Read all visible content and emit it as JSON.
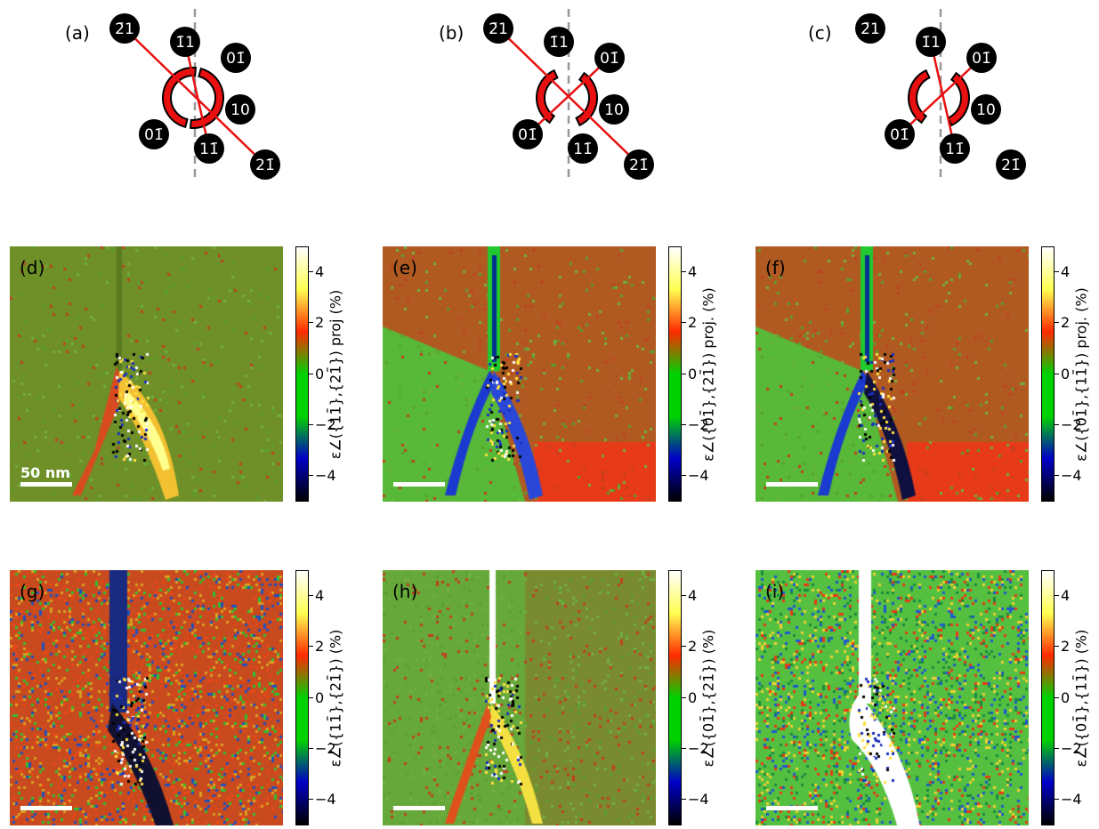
{
  "figure": {
    "diagrams": [
      {
        "label": "(a)",
        "lines": [
          [
            "m21",
            "p21"
          ],
          [
            "m11",
            "p11"
          ]
        ],
        "arcs": [
          "p11"
        ]
      },
      {
        "label": "(b)",
        "lines": [
          [
            "m21",
            "p21"
          ],
          [
            "p01",
            "m01"
          ]
        ],
        "arcs": [
          "p01"
        ]
      },
      {
        "label": "(c)",
        "lines": [
          [
            "m11",
            "p11"
          ],
          [
            "p01",
            "m01"
          ]
        ],
        "arcs": [
          "p01"
        ]
      }
    ],
    "spots": [
      {
        "id": "m21",
        "label": "2̄1"
      },
      {
        "id": "m11",
        "label": "1̄1"
      },
      {
        "id": "p01",
        "label": "01̄"
      },
      {
        "id": "p10",
        "label": "10"
      },
      {
        "id": "m01",
        "label": "01̄"
      },
      {
        "id": "p11",
        "label": "11̄"
      },
      {
        "id": "p21",
        "label": "21̄"
      }
    ],
    "maps": [
      {
        "label": "(d)",
        "scalebar_text": "50 nm",
        "cbar_label": "ε∠({11̄},{21̄}) proj (%)",
        "style": "d"
      },
      {
        "label": "(e)",
        "scalebar_text": "",
        "cbar_label": "ε∠({01̄},{21̄}) proj. (%)",
        "style": "e"
      },
      {
        "label": "(f)",
        "scalebar_text": "",
        "cbar_label": "ε∠({01̄},{11̄}) proj. (%)",
        "style": "f"
      },
      {
        "label": "(g)",
        "scalebar_text": "",
        "cbar_label": "ε∠({11̄},{21̄}) (%)",
        "style": "g"
      },
      {
        "label": "(h)",
        "scalebar_text": "",
        "cbar_label": "ε∠({01̄},{21̄}) (%)",
        "style": "h"
      },
      {
        "label": "(i)",
        "scalebar_text": "",
        "cbar_label": "ε∠({01̄},{11̄}) (%)",
        "style": "i"
      }
    ],
    "colorbar": {
      "range": [
        -5,
        5
      ],
      "ticks": [
        "4",
        "2",
        "0",
        "−2",
        "−4"
      ],
      "tick_values": [
        4,
        2,
        0,
        -2,
        -4
      ],
      "colormap": [
        "#000000",
        "#0000c8",
        "#00d200",
        "#00d200",
        "#ff2a00",
        "#ffff50",
        "#ffffff"
      ]
    },
    "colors": {
      "spot": "#000000",
      "spot_text": "#ffffff",
      "line": "#e81010",
      "arc_fill": "#e81010",
      "axis_dashed": "#999999",
      "map_background_olive": "#6f8f28",
      "map_background_red": "#c84a1e",
      "map_background_green": "#55c040"
    }
  }
}
